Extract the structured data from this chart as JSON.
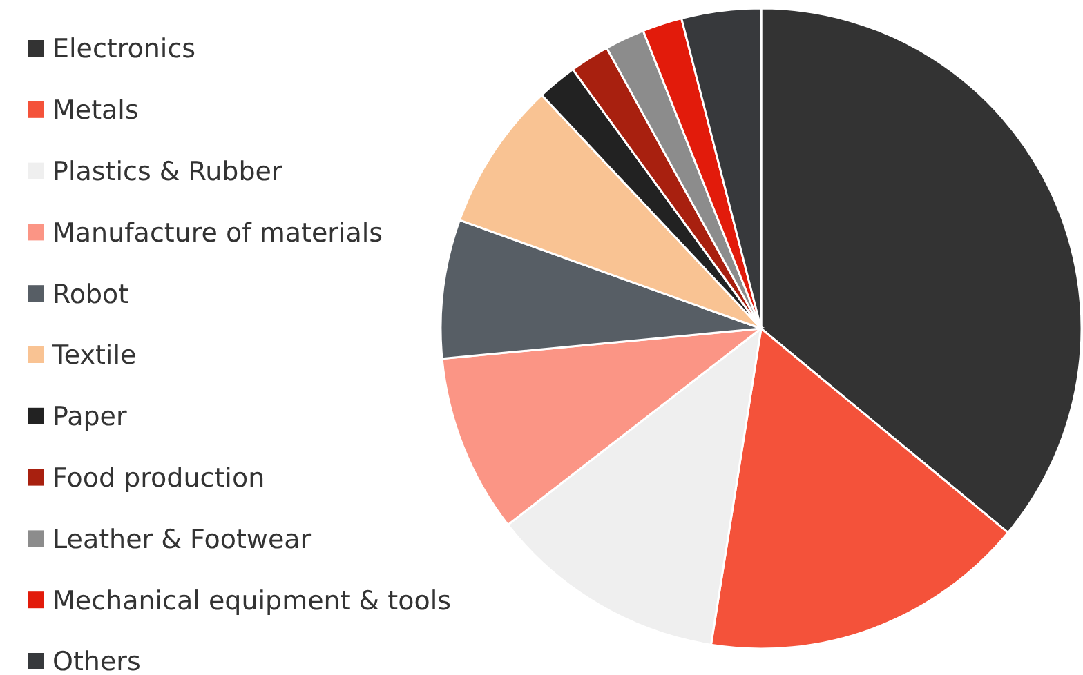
{
  "chart_data": {
    "type": "pie",
    "categories": [
      "Electronics",
      "Metals",
      "Plastics & Rubber",
      "Manufacture of materials",
      "Robot",
      "Textile",
      "Paper",
      "Food production",
      "Leather & Footwear",
      "Mechanical equipment & tools",
      "Others"
    ],
    "values": [
      36,
      16.5,
      12,
      9,
      7,
      7.5,
      2,
      2,
      2,
      2,
      4
    ],
    "colors": [
      "#333333",
      "#f4523a",
      "#efefef",
      "#fb9585",
      "#575e65",
      "#f9c393",
      "#222222",
      "#a8200f",
      "#8c8c8c",
      "#e21b0b",
      "#37393c"
    ],
    "legend": "left"
  }
}
